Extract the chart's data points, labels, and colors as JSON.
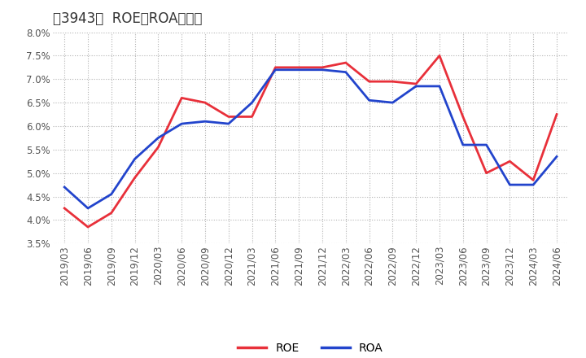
{
  "title_bracket": "［3943］",
  "title_main": "ROE、ROAの推移",
  "x_labels": [
    "2019/03",
    "2019/06",
    "2019/09",
    "2019/12",
    "2020/03",
    "2020/06",
    "2020/09",
    "2020/12",
    "2021/03",
    "2021/06",
    "2021/09",
    "2021/12",
    "2022/03",
    "2022/06",
    "2022/09",
    "2022/12",
    "2023/03",
    "2023/06",
    "2023/09",
    "2023/12",
    "2024/03",
    "2024/06"
  ],
  "roe_data": [
    4.25,
    3.85,
    4.15,
    4.9,
    5.55,
    6.6,
    6.5,
    6.2,
    6.2,
    7.25,
    7.25,
    7.25,
    7.35,
    6.95,
    6.95,
    6.9,
    7.5,
    6.2,
    5.0,
    5.25,
    4.85,
    6.25
  ],
  "roa_data": [
    4.7,
    4.25,
    4.55,
    5.3,
    5.75,
    6.05,
    6.1,
    6.05,
    6.5,
    7.2,
    7.2,
    7.2,
    7.15,
    6.55,
    6.5,
    6.85,
    6.85,
    5.6,
    5.6,
    4.75,
    4.75,
    5.35
  ],
  "roe_color": "#e8303a",
  "roa_color": "#2244cc",
  "ylim": [
    3.5,
    8.0
  ],
  "yticks": [
    3.5,
    4.0,
    4.5,
    5.0,
    5.5,
    6.0,
    6.5,
    7.0,
    7.5,
    8.0
  ],
  "grid_color": "#aaaaaa",
  "bg_color": "#ffffff",
  "title_fontsize": 12,
  "axis_fontsize": 8.5
}
